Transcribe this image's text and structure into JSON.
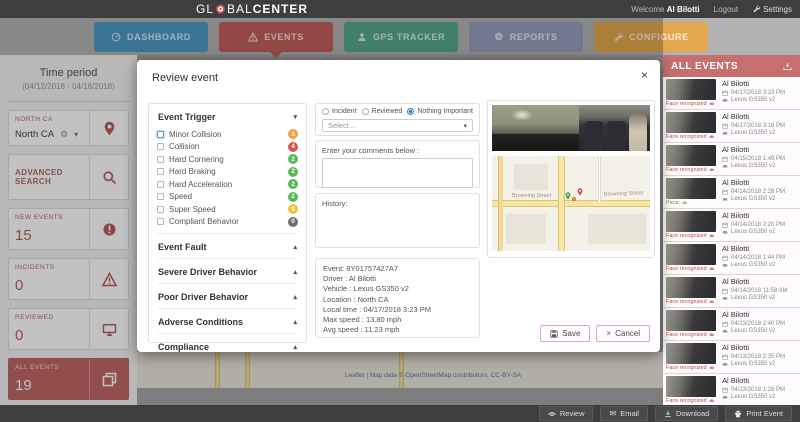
{
  "header": {
    "logo_gl": "GL",
    "logo_bal": "BAL",
    "logo_center": "CENTER",
    "welcome_prefix": "Welcome",
    "user_name": "Al Bilotti",
    "logout_label": "Logout",
    "settings_label": "Settings"
  },
  "nav": {
    "items": [
      {
        "label": "DASHBOARD",
        "icon": "gauge-icon",
        "color": "#4e9ac6",
        "active": false
      },
      {
        "label": "EVENTS",
        "icon": "warning-icon",
        "color": "#c25f5d",
        "active": true
      },
      {
        "label": "GPS TRACKER",
        "icon": "person-icon",
        "color": "#55a98b",
        "active": false
      },
      {
        "label": "REPORTS",
        "icon": "gear-icon",
        "color": "#96a0bd",
        "active": false
      },
      {
        "label": "CONFIGURE",
        "icon": "wrench-icon",
        "color": "#e3a84e",
        "active": false
      }
    ]
  },
  "sidebar": {
    "time_period_title": "Time period",
    "time_period_range": "(04/12/2018 - 04/18/2018)",
    "region_label": "NORTH CA",
    "region_value": "North CA",
    "advanced_search_label": "ADVANCED SEARCH",
    "stats": [
      {
        "label": "NEW EVENTS",
        "value": "15",
        "icon": "alert-circle-icon",
        "active": false
      },
      {
        "label": "INCIDENTS",
        "value": "0",
        "icon": "warning-icon",
        "active": false
      },
      {
        "label": "REVIEWED",
        "value": "0",
        "icon": "monitor-icon",
        "active": false
      },
      {
        "label": "ALL EVENTS",
        "value": "19",
        "icon": "layers-icon",
        "active": true
      }
    ]
  },
  "modal": {
    "title": "Review event",
    "close_glyph": "×",
    "trigger_section_title": "Event Trigger",
    "triggers": [
      {
        "label": "Minor Collision",
        "count": "3",
        "color": "#f0a43c",
        "focused": true
      },
      {
        "label": "Collision",
        "count": "4",
        "color": "#d9534f",
        "focused": false
      },
      {
        "label": "Hard Cornering",
        "count": "2",
        "color": "#5cb85c",
        "focused": false
      },
      {
        "label": "Hard Braking",
        "count": "2",
        "color": "#5cb85c",
        "focused": false
      },
      {
        "label": "Hard Acceleration",
        "count": "2",
        "color": "#5cb85c",
        "focused": false
      },
      {
        "label": "Speed",
        "count": "2",
        "color": "#5cb85c",
        "focused": false
      },
      {
        "label": "Super Speed",
        "count": "3",
        "color": "#f0c23c",
        "focused": false
      },
      {
        "label": "Compliant Behavior",
        "count": "0",
        "color": "#6e6e6e",
        "focused": false
      }
    ],
    "accordion_sections": [
      "Event Fault",
      "Severe Driver Behavior",
      "Poor Driver Behavior",
      "Adverse Conditions",
      "Compliance"
    ],
    "radios": [
      {
        "label": "Incident",
        "selected": false
      },
      {
        "label": "Reviewed",
        "selected": false
      },
      {
        "label": "Nothing Important",
        "selected": true
      }
    ],
    "select_placeholder": "Select...",
    "comments_label": "Enter your comments below :",
    "history_label": "History:",
    "details": [
      "Event: 8Y01757427A7",
      "Driver : Al Bilotti",
      "Vehicle : Lexus GS350 v2",
      "Location : North CA",
      "Local time : 04/17/2018 3:23 PM",
      "Max speed : 13.80 mph",
      "Avg speed : 11.23 mph"
    ],
    "map_street_left": "Browning Street",
    "map_street_right": "Browning Street",
    "save_label": "Save",
    "cancel_label": "Cancel"
  },
  "events_panel": {
    "title": "ALL EVENTS",
    "items": [
      {
        "name": "Al Bilotti",
        "date": "04/17/2018 3:23 PM",
        "vehicle": "Lexus GS350 v2",
        "tag": "Face recognized",
        "tag_color": "#c0504d"
      },
      {
        "name": "Al Bilotti",
        "date": "04/17/2018 3:16 PM",
        "vehicle": "Lexus GS350 v2",
        "tag": "Face recognized",
        "tag_color": "#c0504d"
      },
      {
        "name": "Al Bilotti",
        "date": "04/15/2018 1:49 PM",
        "vehicle": "Lexus GS350 v2",
        "tag": "Face recognized",
        "tag_color": "#c0504d"
      },
      {
        "name": "Al Bilotti",
        "date": "04/14/2018 2:28 PM",
        "vehicle": "Lexus GS350 v2",
        "tag": "Panic",
        "tag_color": "#7ba23c"
      },
      {
        "name": "Al Bilotti",
        "date": "04/14/2018 2:20 PM",
        "vehicle": "Lexus GS350 v2",
        "tag": "Face recognized",
        "tag_color": "#c0504d"
      },
      {
        "name": "Al Bilotti",
        "date": "04/14/2018 1:44 PM",
        "vehicle": "Lexus GS350 v2",
        "tag": "Face recognized",
        "tag_color": "#c0504d"
      },
      {
        "name": "Al Bilotti",
        "date": "04/14/2018 11:58 AM",
        "vehicle": "Lexus GS350 v2",
        "tag": "Face recognized",
        "tag_color": "#c0504d"
      },
      {
        "name": "Al Bilotti",
        "date": "04/13/2018 2:40 PM",
        "vehicle": "Lexus GS350 v2",
        "tag": "Face recognized",
        "tag_color": "#c0504d"
      },
      {
        "name": "Al Bilotti",
        "date": "04/13/2018 2:35 PM",
        "vehicle": "Lexus GS350 v2",
        "tag": "Face recognized",
        "tag_color": "#c0504d"
      },
      {
        "name": "Al Bilotti",
        "date": "04/13/2018 1:28 PM",
        "vehicle": "Lexus GS350 v2",
        "tag": "Face recognized",
        "tag_color": "#c0504d"
      }
    ]
  },
  "footer": {
    "buttons": [
      {
        "label": "Review",
        "icon": "eye-icon"
      },
      {
        "label": "Email",
        "icon": "email-icon"
      },
      {
        "label": "Download",
        "icon": "download-icon"
      },
      {
        "label": "Print Event",
        "icon": "printer-icon"
      }
    ]
  },
  "background": {
    "map_attribution": "Leaflet | Map data © OpenStreetMap contributors, CC-BY-SA"
  },
  "colors": {
    "accent_red": "#c0605e",
    "panel_header_red": "#c76e6e",
    "radio_selected_blue": "#2f7bbf",
    "header_dark": "#3e3e3e"
  }
}
